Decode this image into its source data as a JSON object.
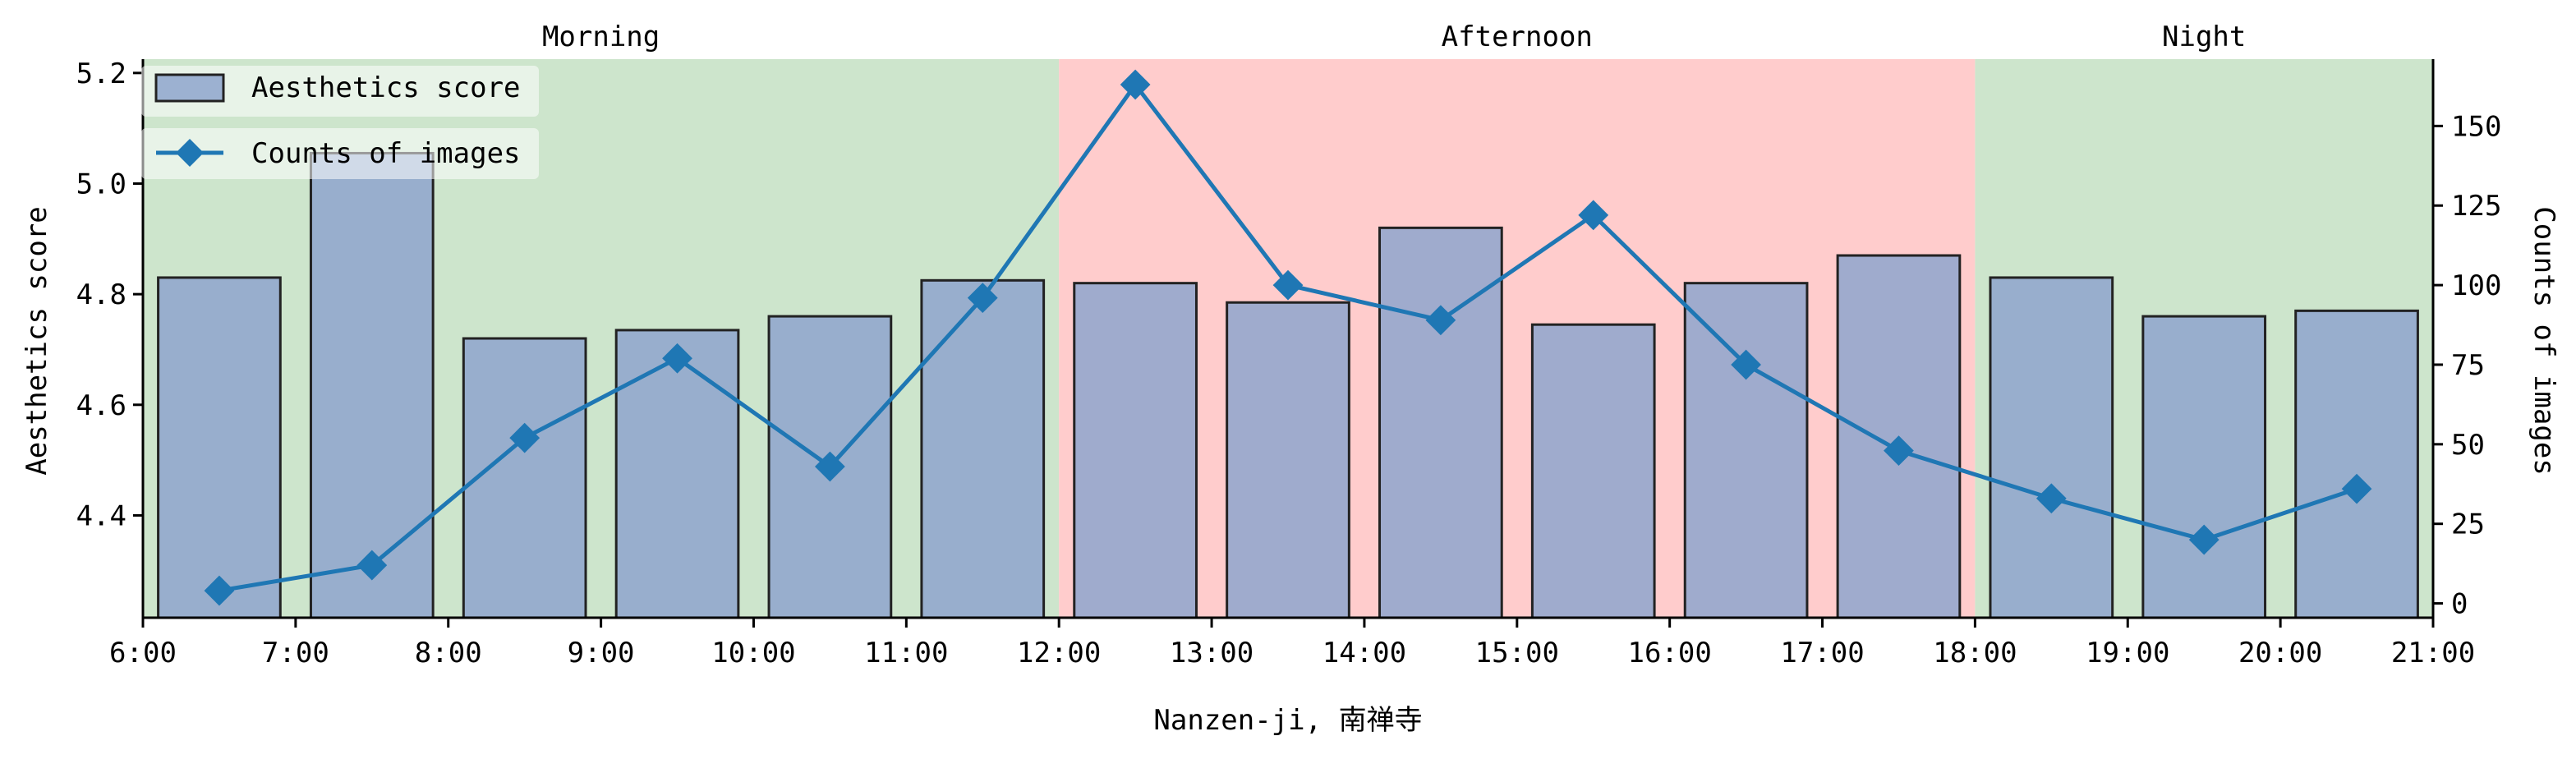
{
  "chart_data": {
    "type": "bar",
    "xlabel": "Nanzen-ji, 南禅寺",
    "ylabel_left": "Aesthetics score",
    "ylabel_right": "Counts of images",
    "x_range": [
      6,
      21
    ],
    "x_ticks": [
      "6:00",
      "7:00",
      "8:00",
      "9:00",
      "10:00",
      "11:00",
      "12:00",
      "13:00",
      "14:00",
      "15:00",
      "16:00",
      "17:00",
      "18:00",
      "19:00",
      "20:00",
      "21:00"
    ],
    "y_left_range": [
      4.215,
      5.225
    ],
    "y_left_ticks": [
      "4.4",
      "4.6",
      "4.8",
      "5.0",
      "5.2"
    ],
    "y_right_range": [
      -4.5,
      171
    ],
    "y_right_ticks": [
      "0",
      "25",
      "50",
      "75",
      "100",
      "125",
      "150"
    ],
    "periods": [
      {
        "label": "Morning",
        "start": 6,
        "end": 12,
        "color": "#cde5cc"
      },
      {
        "label": "Afternoon",
        "start": 12,
        "end": 18,
        "color": "#ffcccc"
      },
      {
        "label": "Night",
        "start": 18,
        "end": 21,
        "color": "#cde5cc"
      }
    ],
    "x": [
      6.5,
      7.5,
      8.5,
      9.5,
      10.5,
      11.5,
      12.5,
      13.5,
      14.5,
      15.5,
      16.5,
      17.5,
      18.5,
      19.5,
      20.5
    ],
    "series": [
      {
        "name": "Aesthetics score",
        "kind": "bar",
        "axis": "left",
        "values": [
          4.83,
          5.055,
          4.72,
          4.735,
          4.76,
          4.825,
          4.82,
          4.785,
          4.92,
          4.745,
          4.82,
          4.87,
          4.83,
          4.76,
          4.77
        ],
        "color": "#8ea5cd"
      },
      {
        "name": "Counts of images",
        "kind": "line",
        "axis": "right",
        "values": [
          4,
          12,
          52,
          77,
          43,
          96,
          163,
          100,
          89,
          122,
          75,
          48,
          33,
          20,
          36
        ],
        "color": "#1f77b4"
      }
    ],
    "legend_position": "top-left"
  }
}
